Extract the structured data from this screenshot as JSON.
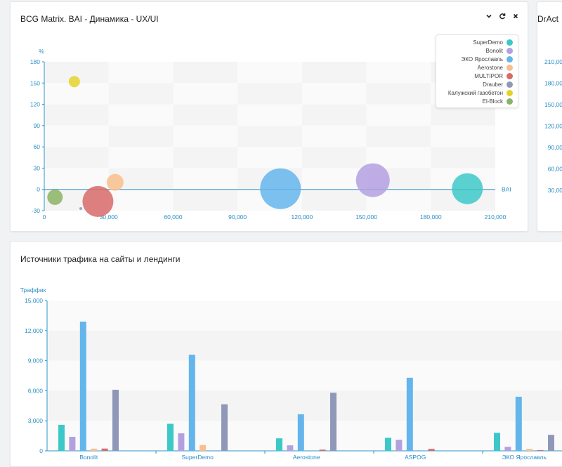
{
  "panels": {
    "bcg": {
      "title": "BCG Matrix. BAI - Динамика - UX/UI",
      "controls": {
        "collapse": "chevron-down-icon",
        "refresh": "refresh-icon",
        "close": "close-icon"
      }
    },
    "side": {
      "title": "DrAct"
    },
    "traffic": {
      "title": "Источники трафика на сайты и лендинги"
    }
  },
  "side_ticks": [
    "210,00",
    "180,00",
    "150,00",
    "120,00",
    "90,00",
    "60,00",
    "30,00"
  ],
  "chart_data": [
    {
      "type": "scatter",
      "subtype": "bubble",
      "ylabel": "%",
      "xlabel": "BAI",
      "xlim": [
        0,
        210000
      ],
      "ylim": [
        -30,
        180
      ],
      "x_ticks": [
        "0",
        "30,000",
        "60,000",
        "90,000",
        "120,000",
        "150,000",
        "180,000",
        "210,000"
      ],
      "y_ticks": [
        "-30",
        "0",
        "30",
        "60",
        "90",
        "120",
        "150",
        "180"
      ],
      "legend_position": "top-right",
      "series": [
        {
          "name": "SuperDemo",
          "color": "#3dc8c8",
          "x": 197000,
          "y": 1,
          "size": 22
        },
        {
          "name": "Bonolit",
          "color": "#b3a0e0",
          "x": 153000,
          "y": 13,
          "size": 24
        },
        {
          "name": "ЭКО Ярославль",
          "color": "#64b5ec",
          "x": 110000,
          "y": 1,
          "size": 29
        },
        {
          "name": "Aerostone",
          "color": "#f8bf8c",
          "x": 33000,
          "y": 10,
          "size": 12
        },
        {
          "name": "MULTIPOR",
          "color": "#d86a6a",
          "x": 25000,
          "y": -17,
          "size": 22
        },
        {
          "name": "Drauber",
          "color": "#8f98b8",
          "x": 17000,
          "y": -27,
          "size": 2
        },
        {
          "name": "Калужский газобетон",
          "color": "#e5d22b",
          "x": 14000,
          "y": 152,
          "size": 8
        },
        {
          "name": "El-Block",
          "color": "#8ab464",
          "x": 5000,
          "y": -11,
          "size": 11
        }
      ]
    },
    {
      "type": "bar",
      "ylabel": "Траффик",
      "ylim": [
        0,
        15000
      ],
      "y_ticks": [
        "0",
        "3,000",
        "6,000",
        "9,000",
        "12,000",
        "15,000"
      ],
      "categories": [
        "Bonolit",
        "SuperDemo",
        "Aerostone",
        "ASPOG",
        "ЭКО Ярославль"
      ],
      "series": [
        {
          "color": "#3dc8c8",
          "values": [
            2600,
            2700,
            1250,
            1300,
            1800
          ]
        },
        {
          "color": "#b3a0e0",
          "values": [
            1400,
            1750,
            550,
            1100,
            400
          ]
        },
        {
          "color": "#64b5ec",
          "values": [
            12900,
            9600,
            3650,
            7300,
            5400
          ]
        },
        {
          "color": "#f8bf8c",
          "values": [
            220,
            580,
            0,
            0,
            200
          ]
        },
        {
          "color": "#d86a6a",
          "values": [
            230,
            0,
            120,
            200,
            80
          ]
        },
        {
          "color": "#8f98b8",
          "values": [
            6100,
            4650,
            5800,
            0,
            1600
          ]
        }
      ]
    }
  ]
}
